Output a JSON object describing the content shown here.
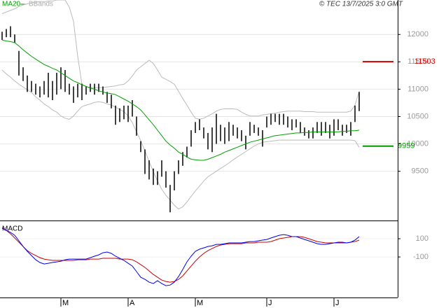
{
  "chart_data": [
    {
      "type": "hilo",
      "copyright": "© TEC 13/7/2025 3:0 GMT",
      "bar_color": "#000000",
      "high": [
        12050,
        12100,
        12150,
        12000,
        11700,
        11400,
        11250,
        11150,
        11100,
        11050,
        11150,
        11300,
        11150,
        11300,
        11400,
        11350,
        11100,
        11050,
        11100,
        11100,
        11050,
        11100,
        11100,
        11100,
        11050,
        10950,
        10900,
        10700,
        10650,
        10700,
        10700,
        10800,
        10500,
        10050,
        9900,
        9700,
        9550,
        9500,
        9700,
        9500,
        9250,
        9500,
        9700,
        9850,
        9950,
        10250,
        10400,
        10450,
        10300,
        10200,
        10300,
        10550,
        10350,
        10300,
        10400,
        10350,
        10300,
        10250,
        10150,
        10400,
        10350,
        10300,
        10250,
        10500,
        10550,
        10550,
        10550,
        10550,
        10500,
        10450,
        10450,
        10400,
        10300,
        10250,
        10300,
        10400,
        10400,
        10400,
        10350,
        10450,
        10450,
        10350,
        10350,
        10400,
        10700,
        10950
      ],
      "low": [
        11900,
        11950,
        11950,
        11850,
        11250,
        11150,
        10950,
        10950,
        10900,
        10850,
        10900,
        10850,
        10800,
        10900,
        11000,
        10950,
        10900,
        10750,
        10850,
        10800,
        10900,
        10950,
        10900,
        10950,
        10900,
        10750,
        10650,
        10350,
        10400,
        10450,
        10400,
        10500,
        10150,
        9850,
        9450,
        9350,
        9250,
        9250,
        9400,
        9200,
        8750,
        9150,
        9450,
        9600,
        9750,
        9950,
        10200,
        10250,
        10100,
        9900,
        9850,
        10000,
        10050,
        10000,
        10050,
        10150,
        10100,
        10050,
        9900,
        10150,
        10200,
        10150,
        9950,
        10300,
        10350,
        10400,
        10350,
        10350,
        10300,
        10250,
        10300,
        10200,
        10150,
        10100,
        10100,
        10200,
        10150,
        10200,
        10100,
        10150,
        10250,
        10150,
        10200,
        10150,
        10400,
        10600
      ],
      "series": [
        {
          "name": "MA20",
          "color": "#00a000",
          "values": [
            11900,
            11880,
            11870,
            11850,
            11790,
            11720,
            11660,
            11600,
            11550,
            11500,
            11450,
            11420,
            11380,
            11350,
            11300,
            11250,
            11200,
            11150,
            11120,
            11080,
            11050,
            11020,
            11000,
            10970,
            10950,
            10930,
            10920,
            10900,
            10860,
            10820,
            10780,
            10730,
            10680,
            10620,
            10530,
            10440,
            10350,
            10250,
            10150,
            10050,
            9980,
            9920,
            9850,
            9810,
            9760,
            9720,
            9710,
            9700,
            9700,
            9720,
            9750,
            9780,
            9810,
            9850,
            9880,
            9910,
            9940,
            9970,
            10000,
            10030,
            10050,
            10070,
            10090,
            10110,
            10130,
            10150,
            10160,
            10170,
            10180,
            10190,
            10200,
            10200,
            10210,
            10210,
            10220,
            10220,
            10220,
            10220,
            10220,
            10220,
            10220,
            10230,
            10230,
            10240,
            10240,
            10250
          ]
        },
        {
          "name": "BBands",
          "color": "#bbbbbb",
          "upper": [
            12380,
            12410,
            12440,
            12470,
            12510,
            12540,
            12560,
            12580,
            12590,
            12600,
            12600,
            12610,
            12610,
            12630,
            12630,
            12630,
            12500,
            12240,
            11600,
            11090,
            11050,
            11030,
            11030,
            11030,
            11030,
            11040,
            11050,
            11060,
            11080,
            11090,
            11150,
            11240,
            11350,
            11410,
            11470,
            11530,
            11470,
            11350,
            11220,
            11180,
            11140,
            11090,
            10960,
            10830,
            10710,
            10580,
            10470,
            10450,
            10470,
            10510,
            10550,
            10600,
            10630,
            10640,
            10640,
            10640,
            10630,
            10580,
            10540,
            10510,
            10510,
            10510,
            10530,
            10540,
            10550,
            10560,
            10580,
            10590,
            10600,
            10600,
            10600,
            10600,
            10590,
            10590,
            10590,
            10580,
            10580,
            10580,
            10580,
            10580,
            10580,
            10580,
            10580,
            10600,
            10710,
            10960
          ],
          "lower": [
            11350,
            11280,
            11220,
            11150,
            11090,
            11040,
            10990,
            10940,
            10860,
            10800,
            10730,
            10680,
            10620,
            10580,
            10510,
            10470,
            10450,
            10510,
            10600,
            10680,
            10710,
            10730,
            10760,
            10770,
            10760,
            10730,
            10710,
            10670,
            10630,
            10590,
            10510,
            10390,
            10220,
            10060,
            9870,
            9680,
            9490,
            9320,
            9170,
            9060,
            8970,
            8880,
            8810,
            8850,
            8940,
            9040,
            9140,
            9230,
            9320,
            9400,
            9450,
            9500,
            9550,
            9600,
            9650,
            9710,
            9760,
            9810,
            9860,
            9910,
            9960,
            10000,
            10030,
            10040,
            10050,
            10060,
            10070,
            10070,
            10070,
            10070,
            10070,
            10070,
            10070,
            10070,
            10070,
            10070,
            10070,
            10070,
            10070,
            10070,
            10070,
            10070,
            10070,
            10070,
            10060,
            9940
          ]
        }
      ],
      "levels": [
        {
          "value": 11503,
          "color": "#cc0000"
        },
        {
          "value": 9959,
          "color": "#009900"
        }
      ],
      "ylim": [
        8600,
        12630
      ],
      "yticks": [
        9500,
        10000,
        10500,
        11000,
        11500,
        12000
      ],
      "grid": true
    },
    {
      "type": "line",
      "title": "MACD",
      "categories": [
        null,
        null,
        null,
        null,
        null,
        null,
        null,
        null,
        null,
        null,
        null,
        null,
        null,
        null,
        "M",
        null,
        null,
        null,
        null,
        null,
        null,
        null,
        null,
        null,
        null,
        null,
        null,
        null,
        null,
        null,
        "A",
        null,
        null,
        null,
        null,
        null,
        null,
        null,
        null,
        null,
        null,
        null,
        null,
        null,
        null,
        null,
        "M",
        null,
        null,
        null,
        null,
        null,
        null,
        null,
        null,
        null,
        null,
        null,
        null,
        null,
        null,
        null,
        null,
        "J",
        null,
        null,
        null,
        null,
        null,
        null,
        null,
        null,
        null,
        null,
        null,
        null,
        null,
        null,
        null,
        "J",
        null,
        null,
        null,
        null,
        null,
        null
      ],
      "series": [
        {
          "color": "#0000ee",
          "values": [
            215,
            192,
            169,
            138,
            77,
            15,
            -38,
            -85,
            -131,
            -161,
            -177,
            -169,
            -161,
            -154,
            -146,
            -131,
            -123,
            -123,
            -123,
            -123,
            -123,
            -108,
            -92,
            -77,
            -54,
            -46,
            -61,
            -92,
            -115,
            -138,
            -169,
            -200,
            -261,
            -323,
            -346,
            -377,
            -392,
            -361,
            -392,
            -415,
            -408,
            -377,
            -315,
            -238,
            -154,
            -92,
            -38,
            -15,
            0,
            15,
            23,
            38,
            38,
            46,
            54,
            54,
            54,
            54,
            62,
            69,
            69,
            77,
            85,
            92,
            108,
            123,
            138,
            146,
            138,
            123,
            123,
            108,
            92,
            77,
            62,
            46,
            38,
            38,
            46,
            54,
            62,
            62,
            54,
            62,
            85,
            123
          ]
        },
        {
          "color": "#cc0000",
          "values": [
            223,
            192,
            154,
            108,
            62,
            15,
            -31,
            -61,
            -85,
            -108,
            -123,
            -131,
            -138,
            -138,
            -138,
            -138,
            -138,
            -138,
            -131,
            -131,
            -131,
            -123,
            -123,
            -123,
            -115,
            -115,
            -115,
            -115,
            -123,
            -123,
            -123,
            -131,
            -154,
            -185,
            -215,
            -254,
            -292,
            -323,
            -354,
            -369,
            -377,
            -369,
            -346,
            -308,
            -254,
            -200,
            -146,
            -100,
            -61,
            -31,
            -8,
            15,
            31,
            38,
            46,
            46,
            46,
            46,
            54,
            54,
            54,
            62,
            62,
            62,
            69,
            85,
            100,
            108,
            115,
            123,
            123,
            123,
            115,
            100,
            85,
            69,
            62,
            54,
            54,
            54,
            54,
            54,
            54,
            62,
            69,
            85
          ]
        }
      ],
      "ylim": [
        -545,
        277
      ],
      "yticks": [
        -100,
        100
      ],
      "grid": true
    }
  ]
}
